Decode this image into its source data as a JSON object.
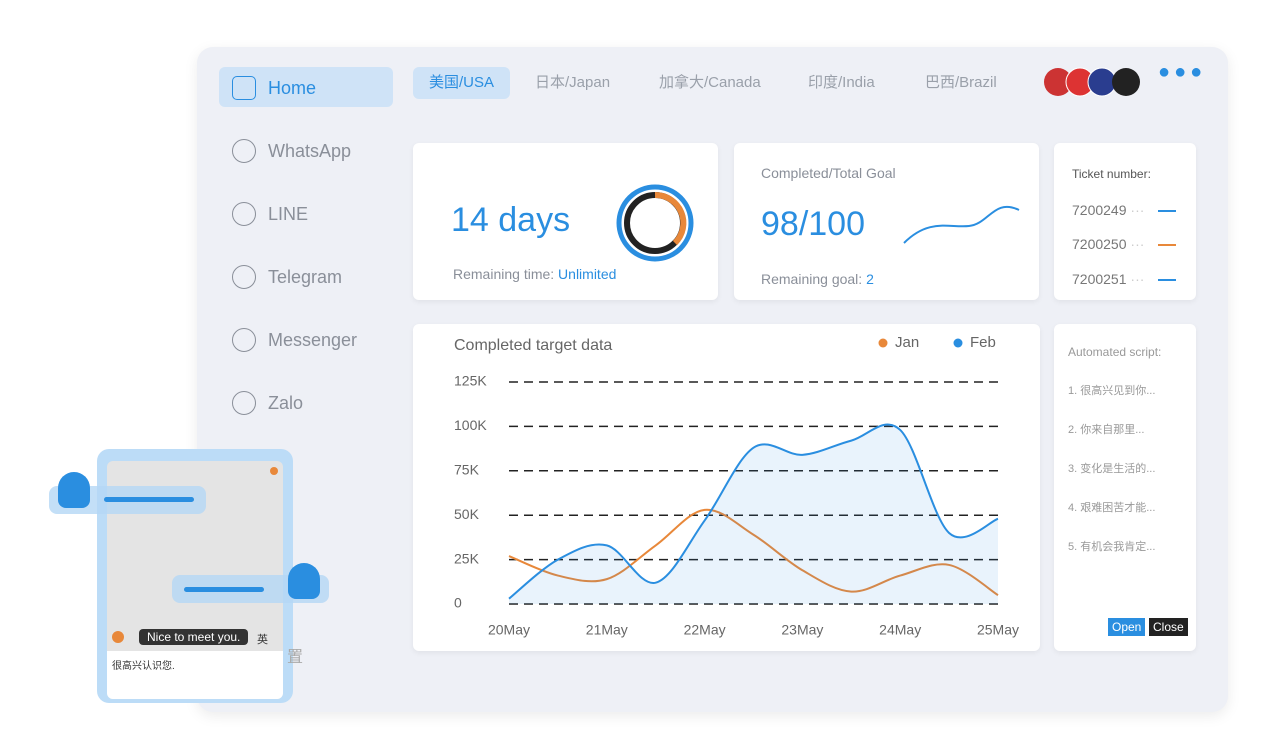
{
  "sidebar": {
    "items": [
      "Home",
      "WhatsApp",
      "LINE",
      "Telegram",
      "Messenger",
      "Zalo"
    ]
  },
  "tabs": [
    "美国/USA",
    "日本/Japan",
    "加拿大/Canada",
    "印度/India",
    "巴西/Brazil"
  ],
  "days_card": {
    "value": "14 days",
    "label": "Remaining time:",
    "link": "Unlimited"
  },
  "goal_card": {
    "title": "Completed/Total Goal",
    "value": "98/100",
    "label": "Remaining goal:",
    "remaining": "2"
  },
  "tickets": {
    "title": "Ticket number:",
    "items": [
      "7200249",
      "7200250",
      "7200251"
    ]
  },
  "script_panel": {
    "title": "Automated script:",
    "items": [
      "1. 很高兴见到你...",
      "2. 你来自那里...",
      "3. 变化是生活的...",
      "4. 艰难困苦才能...",
      "5. 有机会我肯定..."
    ],
    "buttons": [
      "Open",
      "Close"
    ]
  },
  "chat": {
    "bubble": "Nice to meet you.",
    "translation": "很高兴认识您.",
    "lang": "英",
    "hidden_text": "置"
  },
  "chart_data": {
    "type": "line",
    "title": "Completed target data",
    "categories": [
      "20May",
      null,
      "21May",
      null,
      "22May",
      null,
      "23May",
      null,
      "24May",
      null,
      "25May"
    ],
    "series": [
      {
        "name": "Jan",
        "color": "#e8883a",
        "values": [
          27000,
          16000,
          14000,
          33000,
          53000,
          39000,
          19000,
          7000,
          16000,
          22000,
          5000
        ]
      },
      {
        "name": "Feb",
        "color": "#2a8ee0",
        "values": [
          3000,
          25000,
          33000,
          12000,
          47000,
          88000,
          84000,
          92000,
          98000,
          40000,
          48000
        ]
      }
    ],
    "ylim": [
      0,
      125000
    ],
    "yticks": [
      0,
      {
        "value": 25000,
        "label": "25K"
      },
      {
        "value": 50000,
        "label": "50K"
      },
      {
        "value": 75000,
        "label": "75K"
      },
      {
        "value": 100000,
        "label": "100K"
      },
      {
        "value": 125000,
        "label": "125K"
      }
    ],
    "grid": true,
    "legend": "top-right"
  }
}
